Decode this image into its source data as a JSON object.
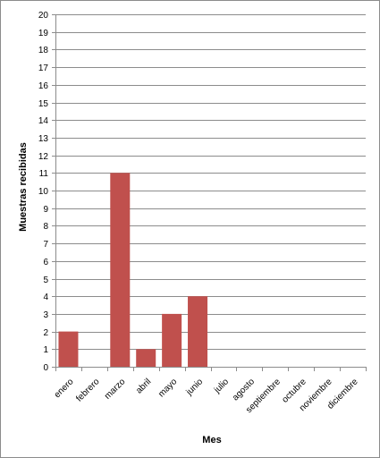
{
  "chart_data": {
    "type": "bar",
    "categories": [
      "enero",
      "febrero",
      "marzo",
      "abril",
      "mayo",
      "junio",
      "julio",
      "agosto",
      "septiembre",
      "octubre",
      "noviembre",
      "diciembre"
    ],
    "values": [
      2,
      0,
      11,
      1,
      3,
      4,
      0,
      0,
      0,
      0,
      0,
      0
    ],
    "title": "",
    "xlabel": "Mes",
    "ylabel": "Muestras recibidas",
    "ylim": [
      0,
      20
    ],
    "yticks": [
      "0",
      "1",
      "2",
      "3",
      "4",
      "5",
      "6",
      "7",
      "8",
      "9",
      "10",
      "11",
      "12",
      "13",
      "14",
      "15",
      "16",
      "17",
      "18",
      "19",
      "20"
    ],
    "grid": true,
    "legend": "none",
    "colors": {
      "bar": "#c0504d",
      "grid": "#8c8c8c",
      "axis": "#8c8c8c"
    }
  }
}
